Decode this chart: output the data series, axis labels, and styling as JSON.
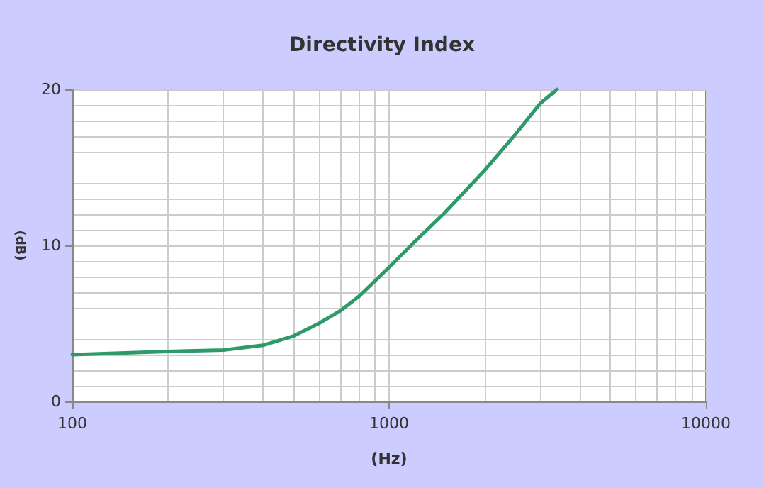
{
  "chart_data": {
    "type": "line",
    "title": "Directivity Index",
    "xlabel": "(Hz)",
    "ylabel": "(dB)",
    "x": [
      100,
      200,
      300,
      400,
      500,
      600,
      700,
      800,
      900,
      1000,
      1200,
      1500,
      2000,
      2500,
      3000,
      3390
    ],
    "series": [
      {
        "color": "#2e9a6a",
        "values": [
          3.0,
          3.2,
          3.3,
          3.6,
          4.2,
          5.0,
          5.8,
          6.7,
          7.7,
          8.6,
          10.2,
          12.1,
          14.8,
          17.1,
          19.1,
          20
        ]
      }
    ],
    "log": "x",
    "xlim": [
      100,
      10000
    ],
    "xticks": [
      100,
      1000,
      10000
    ],
    "ylim": [
      0,
      20
    ],
    "yticks": [
      0,
      10,
      20
    ],
    "grid": true,
    "marker": "none",
    "line_style": "solid"
  }
}
